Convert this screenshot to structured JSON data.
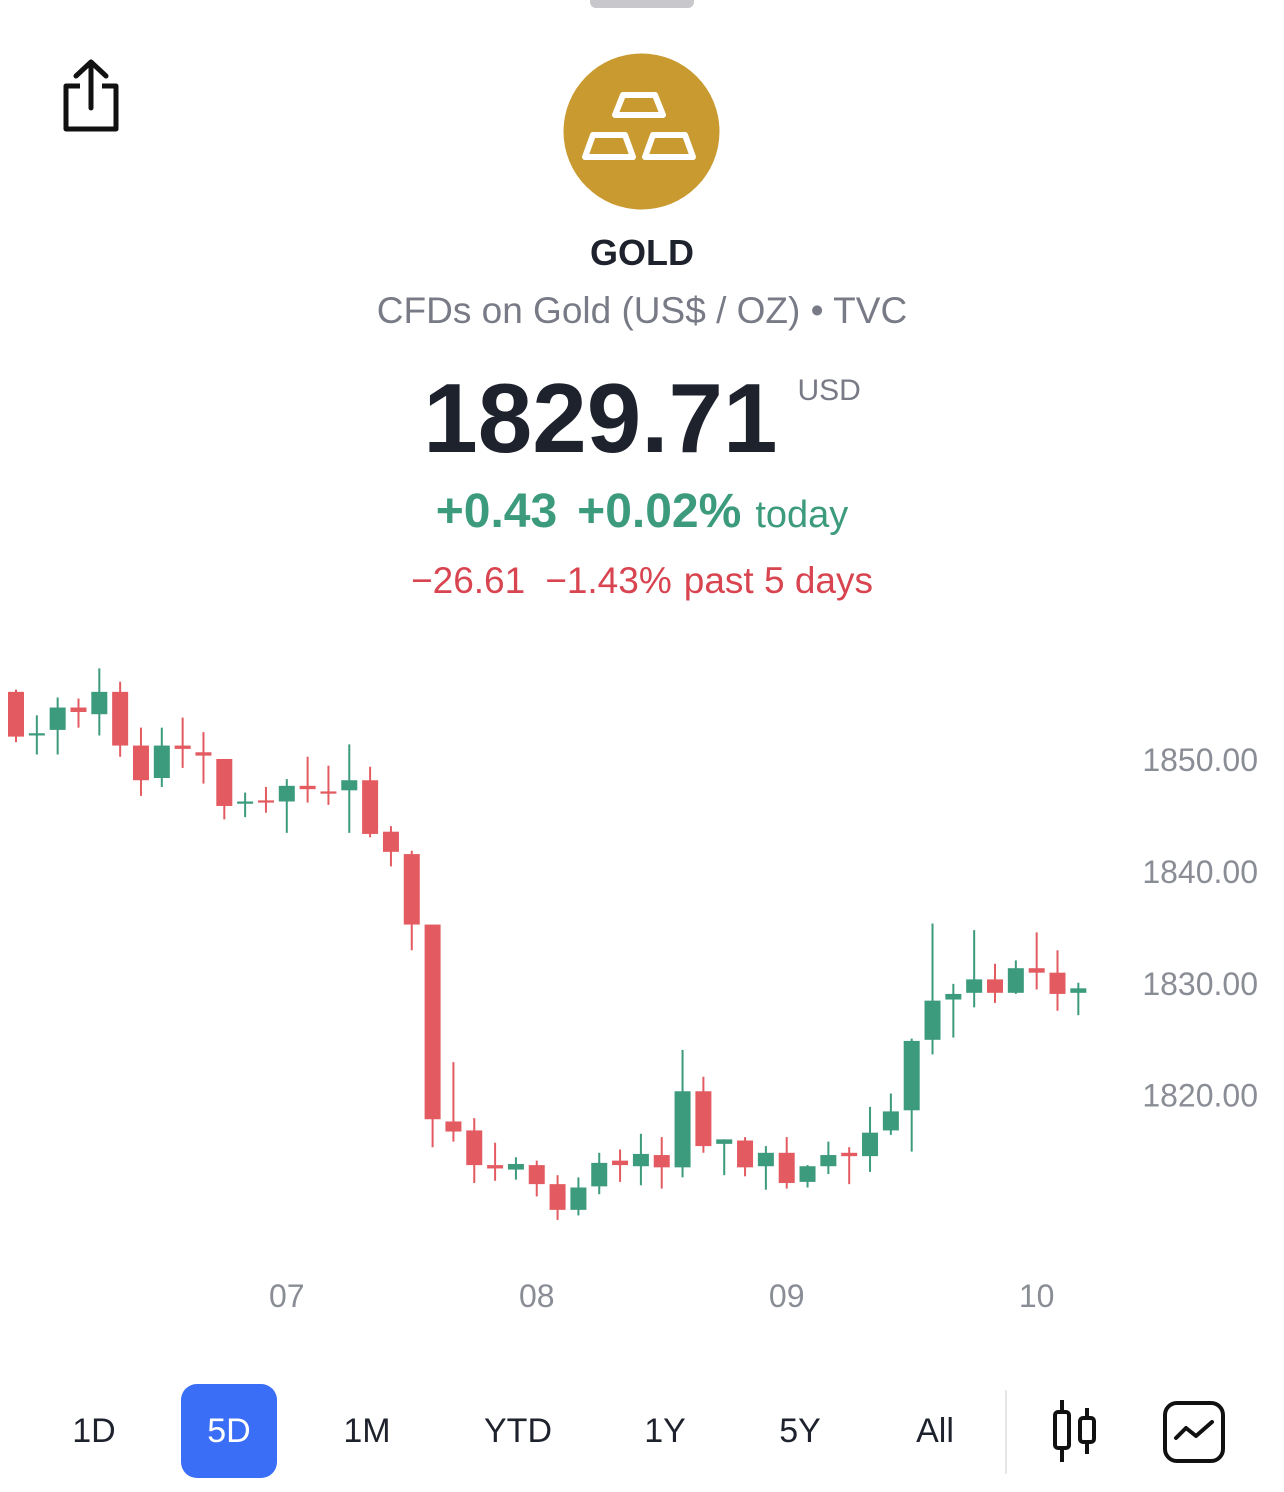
{
  "header": {
    "symbol": "GOLD",
    "description": "CFDs on Gold (US$ / OZ) • TVC",
    "price": "1829.71",
    "currency": "USD",
    "change_today": "+0.43",
    "change_today_pct": "+0.02%",
    "today_label": "today",
    "change_5d": "−26.61",
    "change_5d_pct": "−1.43%",
    "past_label": "past 5 days"
  },
  "chart_data": {
    "type": "candlestick",
    "categories": [
      null,
      null,
      null,
      null,
      null,
      null,
      null,
      null,
      null,
      null,
      null,
      null,
      null,
      "07",
      null,
      null,
      null,
      null,
      null,
      null,
      null,
      null,
      null,
      null,
      null,
      "08",
      null,
      null,
      null,
      null,
      null,
      null,
      null,
      null,
      null,
      null,
      null,
      "09",
      null,
      null,
      null,
      null,
      null,
      null,
      null,
      null,
      null,
      null,
      null,
      "10",
      null,
      null
    ],
    "open": [
      1856.1,
      1852.2,
      1852.7,
      1854.7,
      1854.1,
      1856.1,
      1851.3,
      1848.4,
      1851.3,
      1850.7,
      1850.1,
      1846.1,
      1846.4,
      1846.3,
      1847.7,
      1847.2,
      1847.3,
      1848.2,
      1843.6,
      1841.6,
      1835.3,
      1817.7,
      1816.9,
      1813.8,
      1813.4,
      1813.8,
      1812.1,
      1809.8,
      1811.9,
      1814.2,
      1813.7,
      1814.7,
      1813.6,
      1820.4,
      1815.7,
      1816.0,
      1813.7,
      1814.9,
      1812.3,
      1813.7,
      1814.9,
      1814.6,
      1816.9,
      1818.7,
      1825.0,
      1828.6,
      1829.2,
      1830.4,
      1829.2,
      1831.4,
      1831.0,
      1829.2
    ],
    "high": [
      1856.3,
      1854.0,
      1855.6,
      1855.5,
      1858.2,
      1857.0,
      1852.9,
      1852.9,
      1853.8,
      1852.5,
      1850.1,
      1847.1,
      1847.6,
      1848.3,
      1850.3,
      1849.5,
      1851.4,
      1849.4,
      1844.1,
      1841.9,
      1835.3,
      1823.0,
      1818.0,
      1815.8,
      1814.5,
      1814.2,
      1812.9,
      1812.7,
      1814.9,
      1815.2,
      1816.6,
      1816.3,
      1824.1,
      1821.7,
      1816.1,
      1816.3,
      1815.5,
      1816.3,
      1813.8,
      1815.9,
      1815.4,
      1819.0,
      1820.2,
      1825.1,
      1835.4,
      1830.0,
      1834.8,
      1831.8,
      1832.1,
      1834.6,
      1833.0,
      1830.1
    ],
    "low": [
      1851.6,
      1850.5,
      1850.5,
      1852.9,
      1852.2,
      1850.3,
      1846.8,
      1847.6,
      1849.3,
      1847.9,
      1844.7,
      1844.9,
      1845.3,
      1843.5,
      1846.2,
      1846.0,
      1843.5,
      1843.1,
      1840.5,
      1833.0,
      1815.4,
      1815.9,
      1812.2,
      1812.4,
      1812.5,
      1811.0,
      1808.9,
      1809.3,
      1811.2,
      1812.3,
      1812.0,
      1811.7,
      1812.7,
      1814.9,
      1812.9,
      1812.8,
      1811.6,
      1811.7,
      1811.8,
      1813.0,
      1812.1,
      1813.2,
      1816.5,
      1815.0,
      1823.7,
      1825.2,
      1827.9,
      1828.3,
      1829.1,
      1829.5,
      1827.6,
      1827.2
    ],
    "close": [
      1852.1,
      1852.4,
      1854.7,
      1854.3,
      1856.1,
      1851.3,
      1848.2,
      1851.3,
      1851.0,
      1850.4,
      1845.9,
      1846.3,
      1846.2,
      1847.7,
      1847.4,
      1847.0,
      1848.2,
      1843.4,
      1841.8,
      1835.3,
      1817.9,
      1816.8,
      1813.8,
      1813.5,
      1813.9,
      1812.1,
      1809.8,
      1811.8,
      1814.0,
      1813.8,
      1814.8,
      1813.6,
      1820.4,
      1815.5,
      1816.1,
      1813.6,
      1814.9,
      1812.2,
      1813.7,
      1814.7,
      1814.6,
      1816.7,
      1818.6,
      1824.9,
      1828.5,
      1829.1,
      1830.4,
      1829.2,
      1831.4,
      1831.0,
      1829.1,
      1829.6
    ],
    "up_color": "#3c9a7d",
    "down_color": "#e35b61",
    "ylim": [
      1808,
      1858.5
    ],
    "yticks": [
      {
        "value": 1820,
        "label": "1820.00"
      },
      {
        "value": 1830,
        "label": "1830.00"
      },
      {
        "value": 1840,
        "label": "1840.00"
      },
      {
        "value": 1850,
        "label": "1850.00"
      }
    ],
    "grid": false
  },
  "ranges": [
    "1D",
    "5D",
    "1M",
    "YTD",
    "1Y",
    "5Y",
    "All"
  ],
  "active_range": "5D"
}
